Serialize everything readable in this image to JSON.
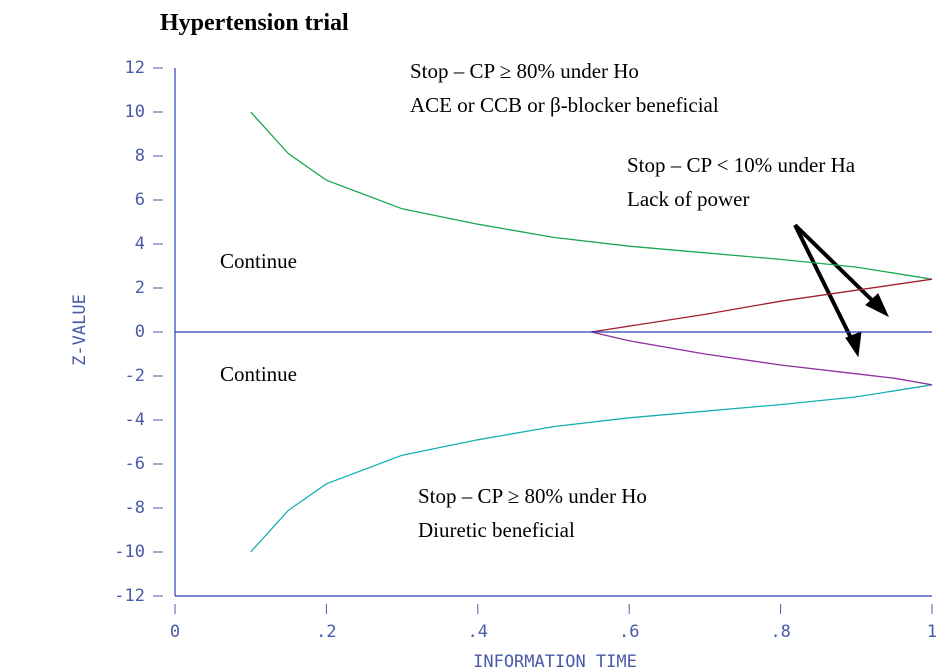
{
  "chart_data": {
    "type": "line",
    "title": "Hypertension trial",
    "xlabel": "INFORMATION TIME",
    "ylabel": "Z-VALUE",
    "xlim": [
      0,
      1
    ],
    "ylim": [
      -12,
      12
    ],
    "xticks": [
      0,
      {
        "value": 0.2,
        "label": ".2"
      },
      {
        "value": 0.4,
        "label": ".4"
      },
      {
        "value": 0.6,
        "label": ".6"
      },
      {
        "value": 0.8,
        "label": ".8"
      },
      1
    ],
    "yticks": [
      -12,
      -10,
      -8,
      -6,
      -4,
      -2,
      0,
      2,
      4,
      6,
      8,
      10,
      12
    ],
    "series": [
      {
        "color": "#1aa850",
        "x": [
          0.1,
          0.15,
          0.2,
          0.3,
          0.4,
          0.5,
          0.6,
          0.7,
          0.8,
          0.9,
          1.0
        ],
        "values": [
          10,
          8.1,
          6.9,
          5.6,
          4.9,
          4.3,
          3.9,
          3.6,
          3.3,
          2.95,
          2.4
        ]
      },
      {
        "color": "#1ab0b0",
        "x": [
          0.1,
          0.15,
          0.2,
          0.3,
          0.4,
          0.5,
          0.6,
          0.7,
          0.8,
          0.9,
          1.0
        ],
        "values": [
          -10,
          -8.1,
          -6.9,
          -5.6,
          -4.9,
          -4.3,
          -3.9,
          -3.6,
          -3.3,
          -2.95,
          -2.4
        ]
      },
      {
        "color": "#a02030",
        "x": [
          0.55,
          0.7,
          0.8,
          0.9,
          1.0
        ],
        "values": [
          0,
          0.8,
          1.4,
          1.9,
          2.4
        ]
      },
      {
        "color": "#9030a0",
        "x": [
          0.55,
          0.6,
          0.7,
          0.8,
          0.9,
          0.95,
          1.0
        ],
        "values": [
          0,
          -0.4,
          -1.0,
          -1.5,
          -1.9,
          -2.1,
          -2.4
        ]
      },
      {
        "color": "#3040b0",
        "x": [
          0,
          1
        ],
        "values": [
          0,
          0
        ]
      }
    ],
    "annotations": [
      "Stop – CP ≥ 80% under Ho",
      "ACE or CCB or β-blocker beneficial",
      "Stop – CP < 10% under Ha",
      "Lack of power",
      "Continue",
      "Continue",
      "Stop – CP ≥ 80% under Ho",
      "Diuretic beneficial"
    ]
  }
}
